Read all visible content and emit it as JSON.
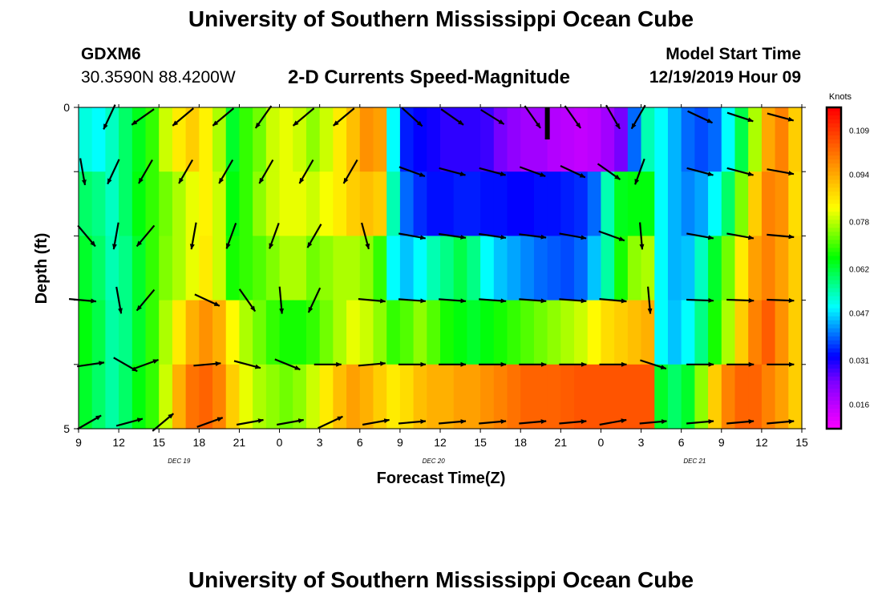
{
  "header": {
    "title": "University of Southern Mississippi Ocean Cube",
    "station_id": "GDXM6",
    "station_coords": "30.3590N 88.4200W",
    "chart_title": "2-D Currents Speed-Magnitude",
    "model_start_label": "Model Start Time",
    "model_start_value": "12/19/2019 Hour 09"
  },
  "footer": {
    "title": "University of Southern Mississippi Ocean Cube"
  },
  "chart_data": {
    "type": "heatmap",
    "title": "2-D Currents Speed-Magnitude",
    "xlabel": "Forecast Time(Z)",
    "ylabel": "Depth (ft)",
    "x_tick_labels": [
      "9",
      "12",
      "15",
      "18",
      "21",
      "0",
      "3",
      "6",
      "9",
      "12",
      "15",
      "18",
      "21",
      "0",
      "3",
      "6",
      "9",
      "12",
      "15"
    ],
    "date_labels": [
      {
        "label": "DEC 19",
        "hour_index": 7.5
      },
      {
        "label": "DEC 20",
        "hour_index": 26.5
      },
      {
        "label": "DEC 21",
        "hour_index": 46
      }
    ],
    "x_start_hour": 9,
    "x_range_hours": [
      0,
      54
    ],
    "hour_columns": 54,
    "y_tick_labels": [
      "0",
      "5"
    ],
    "ylim": [
      0,
      5
    ],
    "depth_rows": 5,
    "colorbar": {
      "unit": "Knots",
      "ticks": [
        0.016,
        0.031,
        0.047,
        0.062,
        0.078,
        0.094,
        0.109
      ],
      "range": [
        0.008,
        0.117
      ],
      "colors": [
        "#ff00ff",
        "#c000ff",
        "#7a00ff",
        "#0000ff",
        "#0080ff",
        "#00ffff",
        "#00ff80",
        "#00ff00",
        "#80ff00",
        "#ffff00",
        "#ffc000",
        "#ff8000",
        "#ff4000",
        "#ff0000"
      ]
    },
    "speed_knots": [
      [
        0.052,
        0.05,
        0.054,
        0.06,
        0.065,
        0.07,
        0.08,
        0.086,
        0.09,
        0.085,
        0.078,
        0.064,
        0.07,
        0.074,
        0.08,
        0.082,
        0.08,
        0.076,
        0.08,
        0.086,
        0.092,
        0.098,
        0.096,
        0.05,
        0.035,
        0.033,
        0.032,
        0.03,
        0.03,
        0.03,
        0.029,
        0.025,
        0.022,
        0.02,
        0.02,
        0.018,
        0.017,
        0.016,
        0.017,
        0.02,
        0.025,
        0.04,
        0.055,
        0.05,
        0.045,
        0.04,
        0.038,
        0.04,
        0.05,
        0.062,
        0.078,
        0.095,
        0.1,
        0.09
      ],
      [
        0.06,
        0.058,
        0.054,
        0.06,
        0.066,
        0.07,
        0.074,
        0.078,
        0.082,
        0.085,
        0.08,
        0.066,
        0.07,
        0.076,
        0.08,
        0.082,
        0.082,
        0.08,
        0.083,
        0.086,
        0.09,
        0.092,
        0.09,
        0.055,
        0.04,
        0.036,
        0.034,
        0.034,
        0.035,
        0.035,
        0.034,
        0.034,
        0.033,
        0.033,
        0.034,
        0.034,
        0.035,
        0.036,
        0.04,
        0.055,
        0.065,
        0.066,
        0.066,
        0.05,
        0.045,
        0.042,
        0.044,
        0.05,
        0.06,
        0.075,
        0.09,
        0.1,
        0.098,
        0.088
      ],
      [
        0.064,
        0.06,
        0.055,
        0.058,
        0.064,
        0.07,
        0.075,
        0.078,
        0.082,
        0.086,
        0.08,
        0.068,
        0.07,
        0.072,
        0.075,
        0.078,
        0.078,
        0.074,
        0.076,
        0.078,
        0.078,
        0.076,
        0.07,
        0.05,
        0.046,
        0.05,
        0.055,
        0.058,
        0.062,
        0.058,
        0.05,
        0.046,
        0.044,
        0.042,
        0.04,
        0.039,
        0.038,
        0.04,
        0.046,
        0.056,
        0.068,
        0.076,
        0.078,
        0.05,
        0.045,
        0.046,
        0.054,
        0.064,
        0.074,
        0.086,
        0.096,
        0.1,
        0.096,
        0.09
      ],
      [
        0.066,
        0.062,
        0.056,
        0.058,
        0.064,
        0.07,
        0.078,
        0.086,
        0.094,
        0.098,
        0.094,
        0.084,
        0.078,
        0.074,
        0.07,
        0.068,
        0.068,
        0.07,
        0.074,
        0.078,
        0.082,
        0.08,
        0.076,
        0.07,
        0.072,
        0.076,
        0.072,
        0.068,
        0.066,
        0.064,
        0.066,
        0.068,
        0.07,
        0.072,
        0.074,
        0.076,
        0.078,
        0.08,
        0.084,
        0.088,
        0.09,
        0.092,
        0.094,
        0.05,
        0.046,
        0.05,
        0.058,
        0.068,
        0.078,
        0.09,
        0.1,
        0.105,
        0.098,
        0.09
      ],
      [
        0.064,
        0.06,
        0.056,
        0.06,
        0.066,
        0.07,
        0.08,
        0.094,
        0.102,
        0.104,
        0.1,
        0.09,
        0.082,
        0.078,
        0.076,
        0.074,
        0.076,
        0.08,
        0.086,
        0.092,
        0.096,
        0.094,
        0.09,
        0.086,
        0.088,
        0.092,
        0.094,
        0.094,
        0.096,
        0.096,
        0.098,
        0.1,
        0.102,
        0.104,
        0.104,
        0.104,
        0.105,
        0.106,
        0.106,
        0.106,
        0.106,
        0.106,
        0.106,
        0.064,
        0.06,
        0.064,
        0.076,
        0.09,
        0.1,
        0.104,
        0.104,
        0.1,
        0.096,
        0.09
      ]
    ],
    "arrow_rows": [
      {
        "depth_index": 0,
        "arrows": [
          {
            "hour": 2.3,
            "dir_deg": 205
          },
          {
            "hour": 4.8,
            "dir_deg": 235
          },
          {
            "hour": 7.8,
            "dir_deg": 230
          },
          {
            "hour": 10.8,
            "dir_deg": 230
          },
          {
            "hour": 13.8,
            "dir_deg": 215
          },
          {
            "hour": 16.8,
            "dir_deg": 230
          },
          {
            "hour": 19.8,
            "dir_deg": 230
          },
          {
            "hour": 24.9,
            "dir_deg": 132
          },
          {
            "hour": 27.9,
            "dir_deg": 125
          },
          {
            "hour": 30.9,
            "dir_deg": 122
          },
          {
            "hour": 33.9,
            "dir_deg": 145
          },
          {
            "hour": 36.9,
            "dir_deg": 145
          },
          {
            "hour": 39.9,
            "dir_deg": 150
          },
          {
            "hour": 41.8,
            "dir_deg": 210
          },
          {
            "hour": 46.4,
            "dir_deg": 115
          },
          {
            "hour": 49.4,
            "dir_deg": 108
          },
          {
            "hour": 52.4,
            "dir_deg": 105
          }
        ]
      },
      {
        "depth_index": 1,
        "arrows": [
          {
            "hour": 0.3,
            "dir_deg": 170
          },
          {
            "hour": 2.6,
            "dir_deg": 205
          },
          {
            "hour": 5.0,
            "dir_deg": 210
          },
          {
            "hour": 8.0,
            "dir_deg": 210
          },
          {
            "hour": 11.0,
            "dir_deg": 210
          },
          {
            "hour": 14.0,
            "dir_deg": 210
          },
          {
            "hour": 17.0,
            "dir_deg": 210
          },
          {
            "hour": 20.3,
            "dir_deg": 210
          },
          {
            "hour": 24.9,
            "dir_deg": 110
          },
          {
            "hour": 27.9,
            "dir_deg": 105
          },
          {
            "hour": 30.9,
            "dir_deg": 105
          },
          {
            "hour": 33.9,
            "dir_deg": 110
          },
          {
            "hour": 36.9,
            "dir_deg": 115
          },
          {
            "hour": 39.6,
            "dir_deg": 125
          },
          {
            "hour": 41.9,
            "dir_deg": 200
          },
          {
            "hour": 46.4,
            "dir_deg": 105
          },
          {
            "hour": 49.4,
            "dir_deg": 105
          },
          {
            "hour": 52.4,
            "dir_deg": 100
          }
        ]
      },
      {
        "depth_index": 2,
        "arrows": [
          {
            "hour": 0.6,
            "dir_deg": 140
          },
          {
            "hour": 2.8,
            "dir_deg": 190
          },
          {
            "hour": 5.0,
            "dir_deg": 220
          },
          {
            "hour": 8.6,
            "dir_deg": 190
          },
          {
            "hour": 11.4,
            "dir_deg": 200
          },
          {
            "hour": 14.6,
            "dir_deg": 200
          },
          {
            "hour": 17.6,
            "dir_deg": 210
          },
          {
            "hour": 21.4,
            "dir_deg": 165
          },
          {
            "hour": 24.9,
            "dir_deg": 100
          },
          {
            "hour": 27.9,
            "dir_deg": 98
          },
          {
            "hour": 30.9,
            "dir_deg": 98
          },
          {
            "hour": 33.9,
            "dir_deg": 97
          },
          {
            "hour": 36.9,
            "dir_deg": 100
          },
          {
            "hour": 39.8,
            "dir_deg": 110
          },
          {
            "hour": 42.0,
            "dir_deg": 175
          },
          {
            "hour": 46.4,
            "dir_deg": 100
          },
          {
            "hour": 49.4,
            "dir_deg": 100
          },
          {
            "hour": 52.4,
            "dir_deg": 95
          }
        ]
      },
      {
        "depth_index": 3,
        "arrows": [
          {
            "hour": 0.3,
            "dir_deg": 95
          },
          {
            "hour": 3.0,
            "dir_deg": 170
          },
          {
            "hour": 5.0,
            "dir_deg": 220
          },
          {
            "hour": 9.6,
            "dir_deg": 115
          },
          {
            "hour": 12.6,
            "dir_deg": 145
          },
          {
            "hour": 15.1,
            "dir_deg": 175
          },
          {
            "hour": 17.6,
            "dir_deg": 205
          },
          {
            "hour": 21.9,
            "dir_deg": 95
          },
          {
            "hour": 24.9,
            "dir_deg": 94
          },
          {
            "hour": 27.9,
            "dir_deg": 94
          },
          {
            "hour": 30.9,
            "dir_deg": 94
          },
          {
            "hour": 33.9,
            "dir_deg": 94
          },
          {
            "hour": 36.9,
            "dir_deg": 94
          },
          {
            "hour": 39.9,
            "dir_deg": 95
          },
          {
            "hour": 42.6,
            "dir_deg": 175
          },
          {
            "hour": 46.4,
            "dir_deg": 92
          },
          {
            "hour": 49.4,
            "dir_deg": 92
          },
          {
            "hour": 52.4,
            "dir_deg": 92
          }
        ]
      },
      {
        "depth_index": 4,
        "arrows": [
          {
            "hour": 0.9,
            "dir_deg": 82
          },
          {
            "hour": 3.5,
            "dir_deg": 120
          },
          {
            "hour": 5.0,
            "dir_deg": 70
          },
          {
            "hour": 9.6,
            "dir_deg": 85
          },
          {
            "hour": 12.6,
            "dir_deg": 105
          },
          {
            "hour": 15.6,
            "dir_deg": 112
          },
          {
            "hour": 18.6,
            "dir_deg": 90
          },
          {
            "hour": 21.9,
            "dir_deg": 85
          },
          {
            "hour": 24.9,
            "dir_deg": 90
          },
          {
            "hour": 27.9,
            "dir_deg": 90
          },
          {
            "hour": 30.9,
            "dir_deg": 90
          },
          {
            "hour": 33.9,
            "dir_deg": 90
          },
          {
            "hour": 36.9,
            "dir_deg": 90
          },
          {
            "hour": 39.9,
            "dir_deg": 90
          },
          {
            "hour": 42.9,
            "dir_deg": 108
          },
          {
            "hour": 46.4,
            "dir_deg": 90
          },
          {
            "hour": 49.4,
            "dir_deg": 90
          },
          {
            "hour": 52.4,
            "dir_deg": 90
          }
        ]
      },
      {
        "depth_index": 5,
        "arrows": [
          {
            "hour": 0.8,
            "dir_deg": 60
          },
          {
            "hour": 3.8,
            "dir_deg": 75
          },
          {
            "hour": 6.3,
            "dir_deg": 50
          },
          {
            "hour": 9.8,
            "dir_deg": 70
          },
          {
            "hour": 12.8,
            "dir_deg": 80
          },
          {
            "hour": 15.8,
            "dir_deg": 80
          },
          {
            "hour": 18.8,
            "dir_deg": 65
          },
          {
            "hour": 22.2,
            "dir_deg": 80
          },
          {
            "hour": 24.9,
            "dir_deg": 85
          },
          {
            "hour": 27.9,
            "dir_deg": 85
          },
          {
            "hour": 30.9,
            "dir_deg": 85
          },
          {
            "hour": 33.9,
            "dir_deg": 85
          },
          {
            "hour": 36.9,
            "dir_deg": 85
          },
          {
            "hour": 39.9,
            "dir_deg": 80
          },
          {
            "hour": 42.9,
            "dir_deg": 85
          },
          {
            "hour": 46.4,
            "dir_deg": 85
          },
          {
            "hour": 49.4,
            "dir_deg": 85
          },
          {
            "hour": 52.4,
            "dir_deg": 85
          }
        ]
      }
    ],
    "time_marker_hour": 35
  }
}
